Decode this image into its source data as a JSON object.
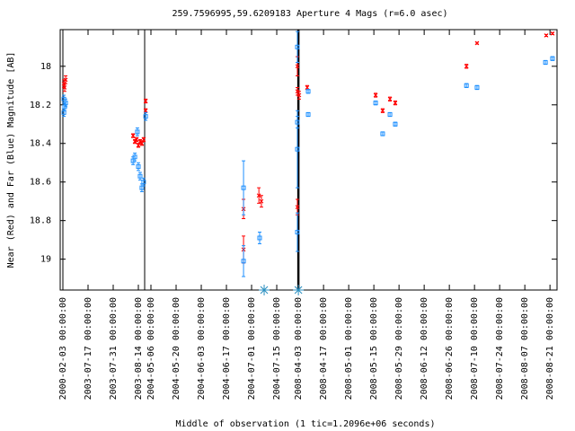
{
  "chart_data": {
    "type": "scatter",
    "title": "259.7596995,59.6209183    Aperture 4 Mags (r=6.0 asec)",
    "y_label": "Near (Red) and Far (Blue) Magnitude [AB]",
    "x_label": "Middle of observation (1 tic=1.2096e+06 seconds)",
    "xlim": [
      -0.107,
      19.64
    ],
    "ylim": [
      19.16,
      17.81
    ],
    "yticks": [
      18,
      18.2,
      18.4,
      18.6,
      18.8,
      19
    ],
    "xticks": [
      {
        "value": 0,
        "label": "2000-02-03 00:00:00"
      },
      {
        "value": 1,
        "label": "2003-07-17 00:00:00"
      },
      {
        "value": 2,
        "label": "2003-07-31 00:00:00"
      },
      {
        "value": 3,
        "label": "2003-08-14 00:00:00"
      },
      {
        "value": 3.5,
        "label": "2004-05-06 00:00:00"
      },
      {
        "value": 4.5,
        "label": "2004-05-20 00:00:00"
      },
      {
        "value": 5.5,
        "label": "2004-06-03 00:00:00"
      },
      {
        "value": 6.5,
        "label": "2004-06-17 00:00:00"
      },
      {
        "value": 7.5,
        "label": "2004-07-01 00:00:00"
      },
      {
        "value": 8.5,
        "label": "2004-07-15 00:00:00"
      },
      {
        "value": 9.36,
        "label": "2008-04-03 00:00:00"
      },
      {
        "value": 10.36,
        "label": "2008-04-17 00:00:00"
      },
      {
        "value": 11.36,
        "label": "2008-05-01 00:00:00"
      },
      {
        "value": 12.36,
        "label": "2008-05-15 00:00:00"
      },
      {
        "value": 13.36,
        "label": "2008-05-29 00:00:00"
      },
      {
        "value": 14.36,
        "label": "2008-06-12 00:00:00"
      },
      {
        "value": 15.36,
        "label": "2008-06-26 00:00:00"
      },
      {
        "value": 16.36,
        "label": "2008-07-10 00:00:00"
      },
      {
        "value": 17.36,
        "label": "2008-07-24 00:00:00"
      },
      {
        "value": 18.36,
        "label": "2008-08-07 00:00:00"
      },
      {
        "value": 19.36,
        "label": "2008-08-21 00:00:00"
      }
    ],
    "vlines": [
      0,
      3.25,
      9.36
    ],
    "bottom_markers": [
      8.0,
      9.36
    ],
    "series": [
      {
        "color": "#ff0000",
        "marker": "cross",
        "x": [
          0.04,
          0.07,
          0.11,
          2.79,
          2.86,
          2.93,
          3.0,
          3.07,
          3.14,
          3.21,
          3.29,
          3.29,
          7.18,
          7.18,
          7.79,
          7.89,
          9.32,
          9.32,
          9.32,
          9.39,
          9.71,
          12.43,
          12.71,
          13.0,
          13.21,
          16.04,
          16.46,
          19.21,
          19.46
        ],
        "values": [
          18.09,
          18.11,
          18.07,
          18.36,
          18.39,
          18.38,
          18.41,
          18.39,
          18.4,
          18.38,
          18.18,
          18.23,
          18.74,
          18.95,
          18.67,
          18.7,
          18.0,
          18.13,
          18.73,
          18.15,
          18.11,
          18.15,
          18.23,
          18.17,
          18.19,
          18.0,
          17.88,
          17.84,
          17.83
        ],
        "errors": [
          0.02,
          0.02,
          0.02,
          0.01,
          0.01,
          0.01,
          0.01,
          0.01,
          0.01,
          0.01,
          0.01,
          0.01,
          0.05,
          0.07,
          0.04,
          0.03,
          0.05,
          0.02,
          0.04,
          0.02,
          0.01,
          0.01,
          0.01,
          0.01,
          0.01,
          0.01,
          0.005,
          0.005,
          0.005
        ]
      },
      {
        "color": "#1e90ff",
        "marker": "square",
        "x": [
          0.04,
          0.07,
          0.04,
          0.11,
          2.79,
          2.86,
          2.96,
          3.0,
          3.07,
          3.14,
          3.21,
          3.29,
          7.18,
          7.18,
          7.82,
          9.32,
          9.32,
          9.32,
          9.32,
          9.75,
          9.75,
          12.43,
          12.71,
          13.0,
          13.21,
          16.04,
          16.46,
          19.18,
          19.46
        ],
        "values": [
          18.17,
          18.21,
          18.24,
          18.19,
          18.49,
          18.47,
          18.34,
          18.52,
          18.57,
          18.63,
          18.6,
          18.26,
          18.63,
          19.01,
          18.89,
          17.9,
          18.29,
          18.43,
          18.86,
          18.13,
          18.25,
          18.19,
          18.35,
          18.25,
          18.3,
          18.1,
          18.11,
          17.98,
          17.96
        ],
        "errors": [
          0.02,
          0.02,
          0.02,
          0.02,
          0.02,
          0.02,
          0.02,
          0.02,
          0.02,
          0.02,
          0.02,
          0.02,
          0.14,
          0.08,
          0.03,
          0.08,
          0.03,
          0.2,
          0.1,
          0.01,
          0.01,
          0.01,
          0.01,
          0.01,
          0.01,
          0.01,
          0.01,
          0.01,
          0.01
        ]
      }
    ]
  }
}
